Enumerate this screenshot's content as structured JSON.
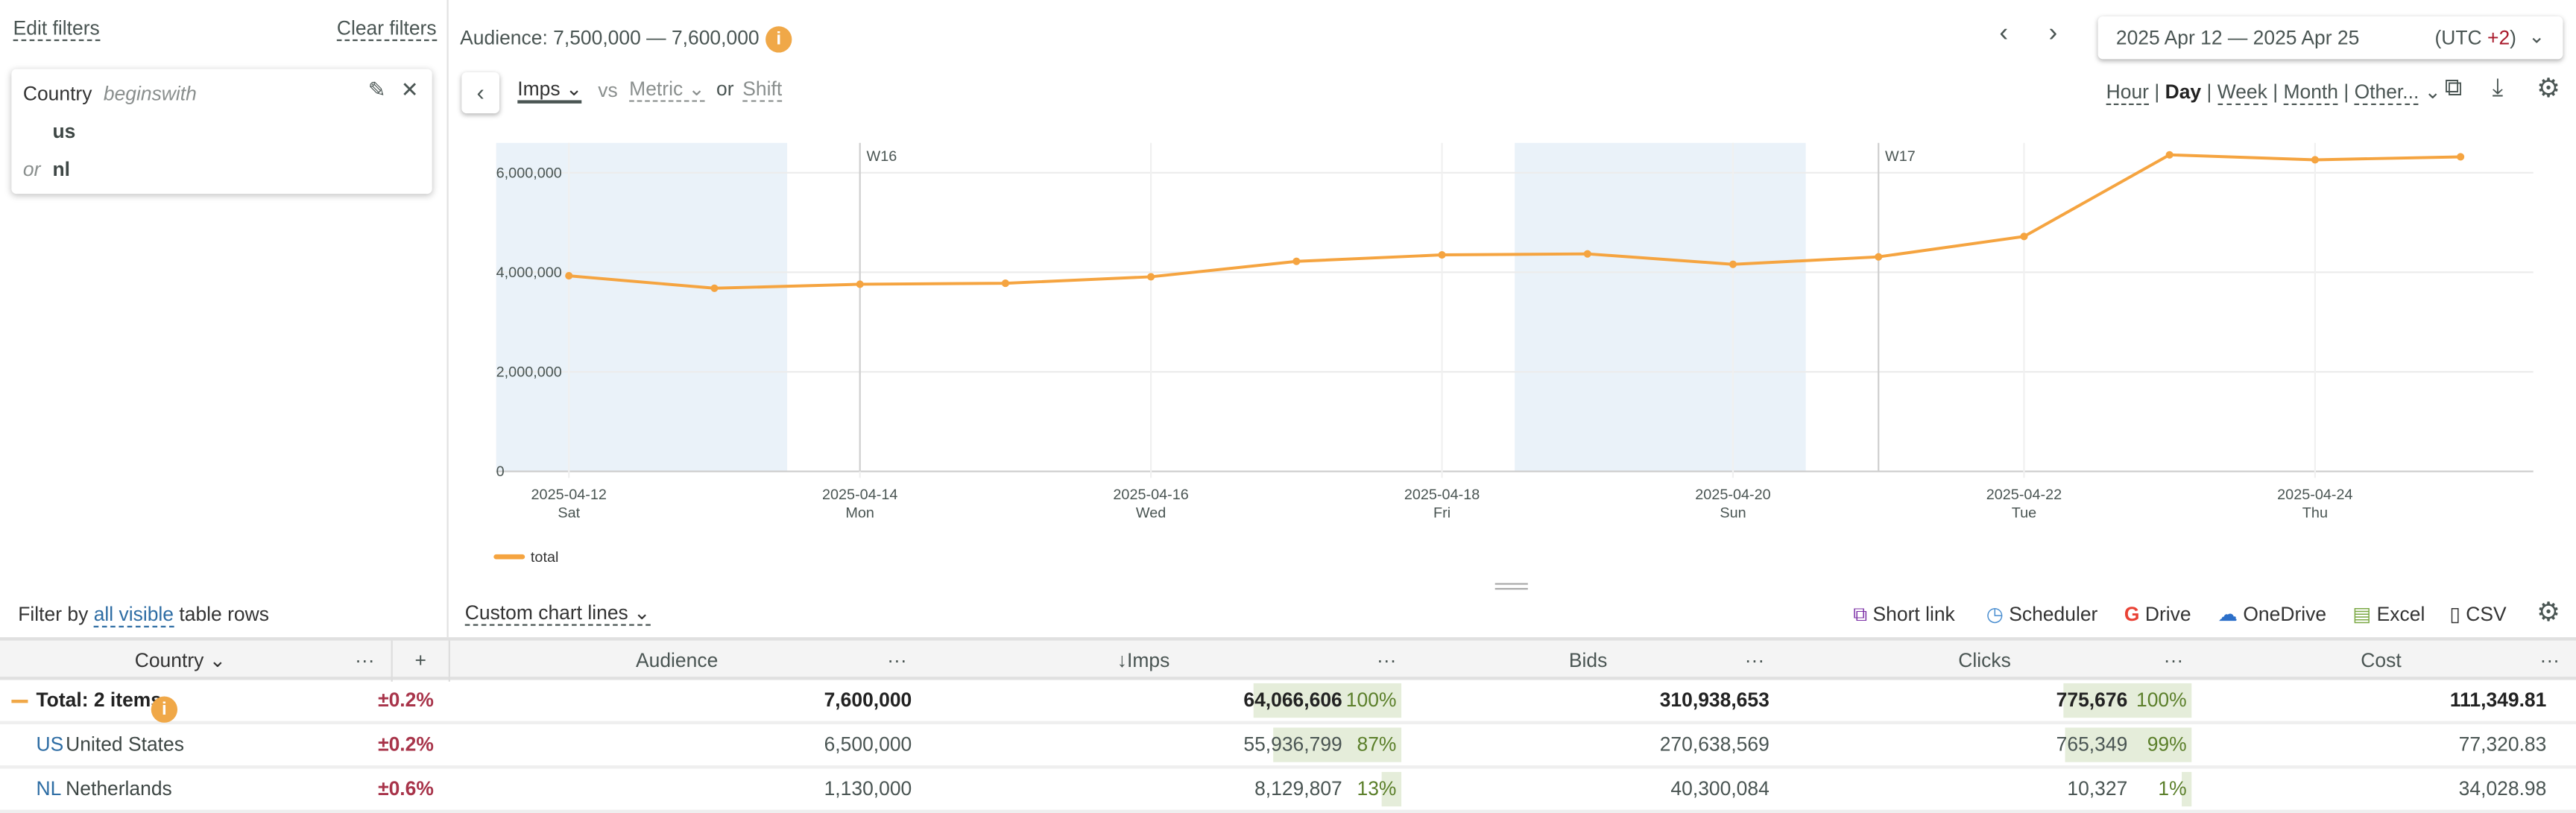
{
  "filters": {
    "edit": "Edit filters",
    "clear": "Clear filters",
    "field": "Country",
    "op": "beginswith",
    "values": [
      "us",
      "nl"
    ],
    "or": "or",
    "filter_by_prefix": "Filter by",
    "filter_by_link": "all visible",
    "filter_by_suffix": "table rows"
  },
  "header": {
    "audience": "Audience: 7,500,000 — 7,600,000",
    "info": "i",
    "metric": "Imps",
    "vs": "vs",
    "metric2": "Metric",
    "or": "or",
    "shift": "Shift",
    "date_range": "2025 Apr 12 — 2025 Apr 25",
    "tz_prefix": "(UTC ",
    "tz_offset": "+2",
    "tz_suffix": ")",
    "granularity": [
      "Hour",
      "Day",
      "Week",
      "Month",
      "Other..."
    ],
    "active_granularity": "Day"
  },
  "toolbar": {
    "custom_lines": "Custom chart lines",
    "short_link": "Short link",
    "scheduler": "Scheduler",
    "drive": "Drive",
    "onedrive": "OneDrive",
    "excel": "Excel",
    "csv": "CSV"
  },
  "chart_data": {
    "type": "line",
    "title": "",
    "xlabel": "",
    "ylabel": "",
    "x": [
      "2025-04-12",
      "2025-04-13",
      "2025-04-14",
      "2025-04-15",
      "2025-04-16",
      "2025-04-17",
      "2025-04-18",
      "2025-04-19",
      "2025-04-20",
      "2025-04-21",
      "2025-04-22",
      "2025-04-23",
      "2025-04-24",
      "2025-04-25"
    ],
    "series": [
      {
        "name": "total",
        "color": "#f5a440",
        "values": [
          3930000,
          3680000,
          3760000,
          3780000,
          3910000,
          4220000,
          4350000,
          4370000,
          4160000,
          4310000,
          4720000,
          6360000,
          6260000,
          6320000
        ]
      }
    ],
    "ylim": [
      0,
      6600000
    ],
    "yticks": [
      "0",
      "2,000,000",
      "4,000,000",
      "6,000,000"
    ],
    "ytick_values": [
      0,
      2000000,
      4000000,
      6000000
    ],
    "xticks": [
      {
        "date": "2025-04-12",
        "day": "Sat",
        "i": 0
      },
      {
        "date": "2025-04-14",
        "day": "Mon",
        "i": 2
      },
      {
        "date": "2025-04-16",
        "day": "Wed",
        "i": 4
      },
      {
        "date": "2025-04-18",
        "day": "Fri",
        "i": 6
      },
      {
        "date": "2025-04-20",
        "day": "Sun",
        "i": 8
      },
      {
        "date": "2025-04-22",
        "day": "Tue",
        "i": 10
      },
      {
        "date": "2025-04-24",
        "day": "Thu",
        "i": 12
      }
    ],
    "weekends": [
      [
        0,
        1
      ],
      [
        7,
        8
      ]
    ],
    "weeks": [
      {
        "label": "W16",
        "i": 2
      },
      {
        "label": "W17",
        "i": 9
      }
    ],
    "legend": "bottom-left",
    "grid": true
  },
  "table": {
    "columns": [
      "Country",
      "Audience",
      "Imps",
      "Bids",
      "Clicks",
      "Cost"
    ],
    "sort_arrow": "↓",
    "more": "···",
    "add": "+",
    "rows": [
      {
        "code": "",
        "name": "Total: 2 items",
        "delta": "±0.2%",
        "audience": "7,600,000",
        "imps": "64,066,606",
        "imps_pct": "100%",
        "imps_share": 1.0,
        "bids": "310,938,653",
        "clicks": "775,676",
        "clicks_pct": "100%",
        "clicks_share": 1.0,
        "cost": "111,349.81"
      },
      {
        "code": "US",
        "name": "United States",
        "delta": "±0.2%",
        "audience": "6,500,000",
        "imps": "55,936,799",
        "imps_pct": "87%",
        "imps_share": 0.87,
        "bids": "270,638,569",
        "clicks": "765,349",
        "clicks_pct": "99%",
        "clicks_share": 0.99,
        "cost": "77,320.83"
      },
      {
        "code": "NL",
        "name": "Netherlands",
        "delta": "±0.6%",
        "audience": "1,130,000",
        "imps": "8,129,807",
        "imps_pct": "13%",
        "imps_share": 0.13,
        "bids": "40,300,084",
        "clicks": "10,327",
        "clicks_pct": "1%",
        "clicks_share": 0.01,
        "cost": "34,028.98"
      }
    ]
  }
}
